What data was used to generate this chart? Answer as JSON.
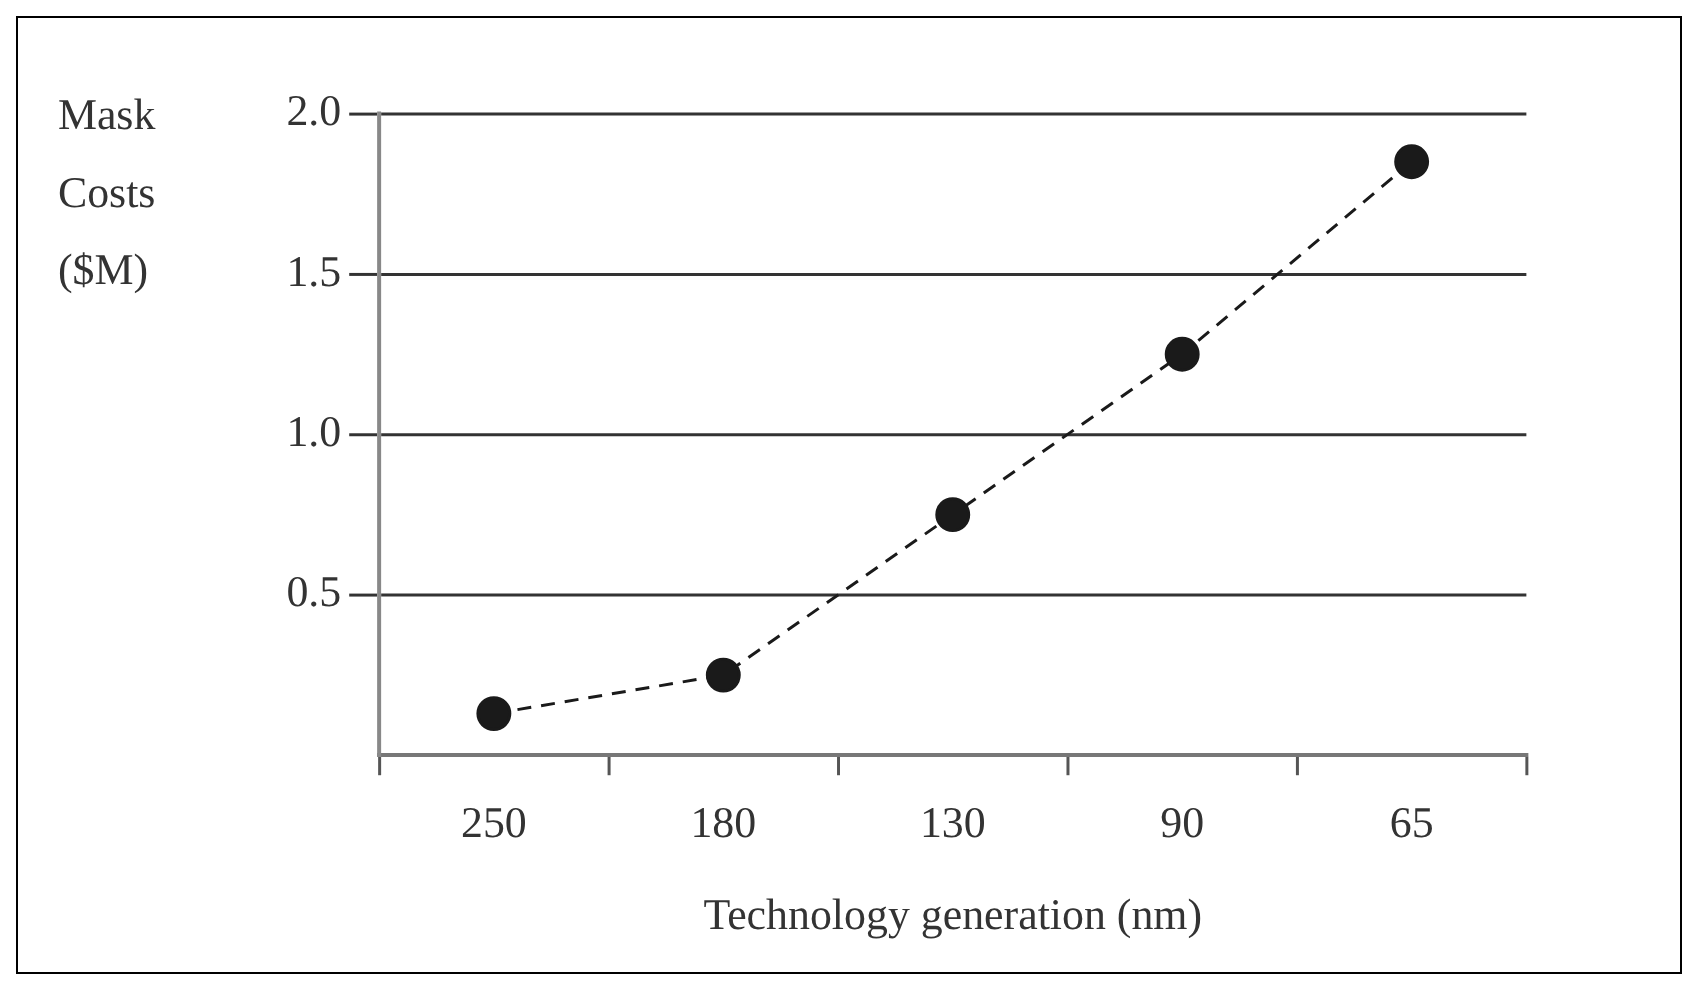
{
  "chart_data": {
    "type": "line",
    "xlabel": "Technology generation (nm)",
    "ylabel": "Mask Costs ($M)",
    "categories": [
      "250",
      "180",
      "130",
      "90",
      "65"
    ],
    "series": [
      {
        "color": "#1a1a1a",
        "values": [
          0.13,
          0.25,
          0.75,
          1.25,
          1.85
        ]
      }
    ],
    "ylim": [
      0,
      2.0
    ],
    "yticks": [
      0.5,
      {
        "value": 1,
        "label": "1.0"
      },
      1.5,
      {
        "value": 2,
        "label": "2.0"
      }
    ],
    "grid": "y",
    "legend": false,
    "marker": "circle",
    "line_style": "dashed"
  }
}
